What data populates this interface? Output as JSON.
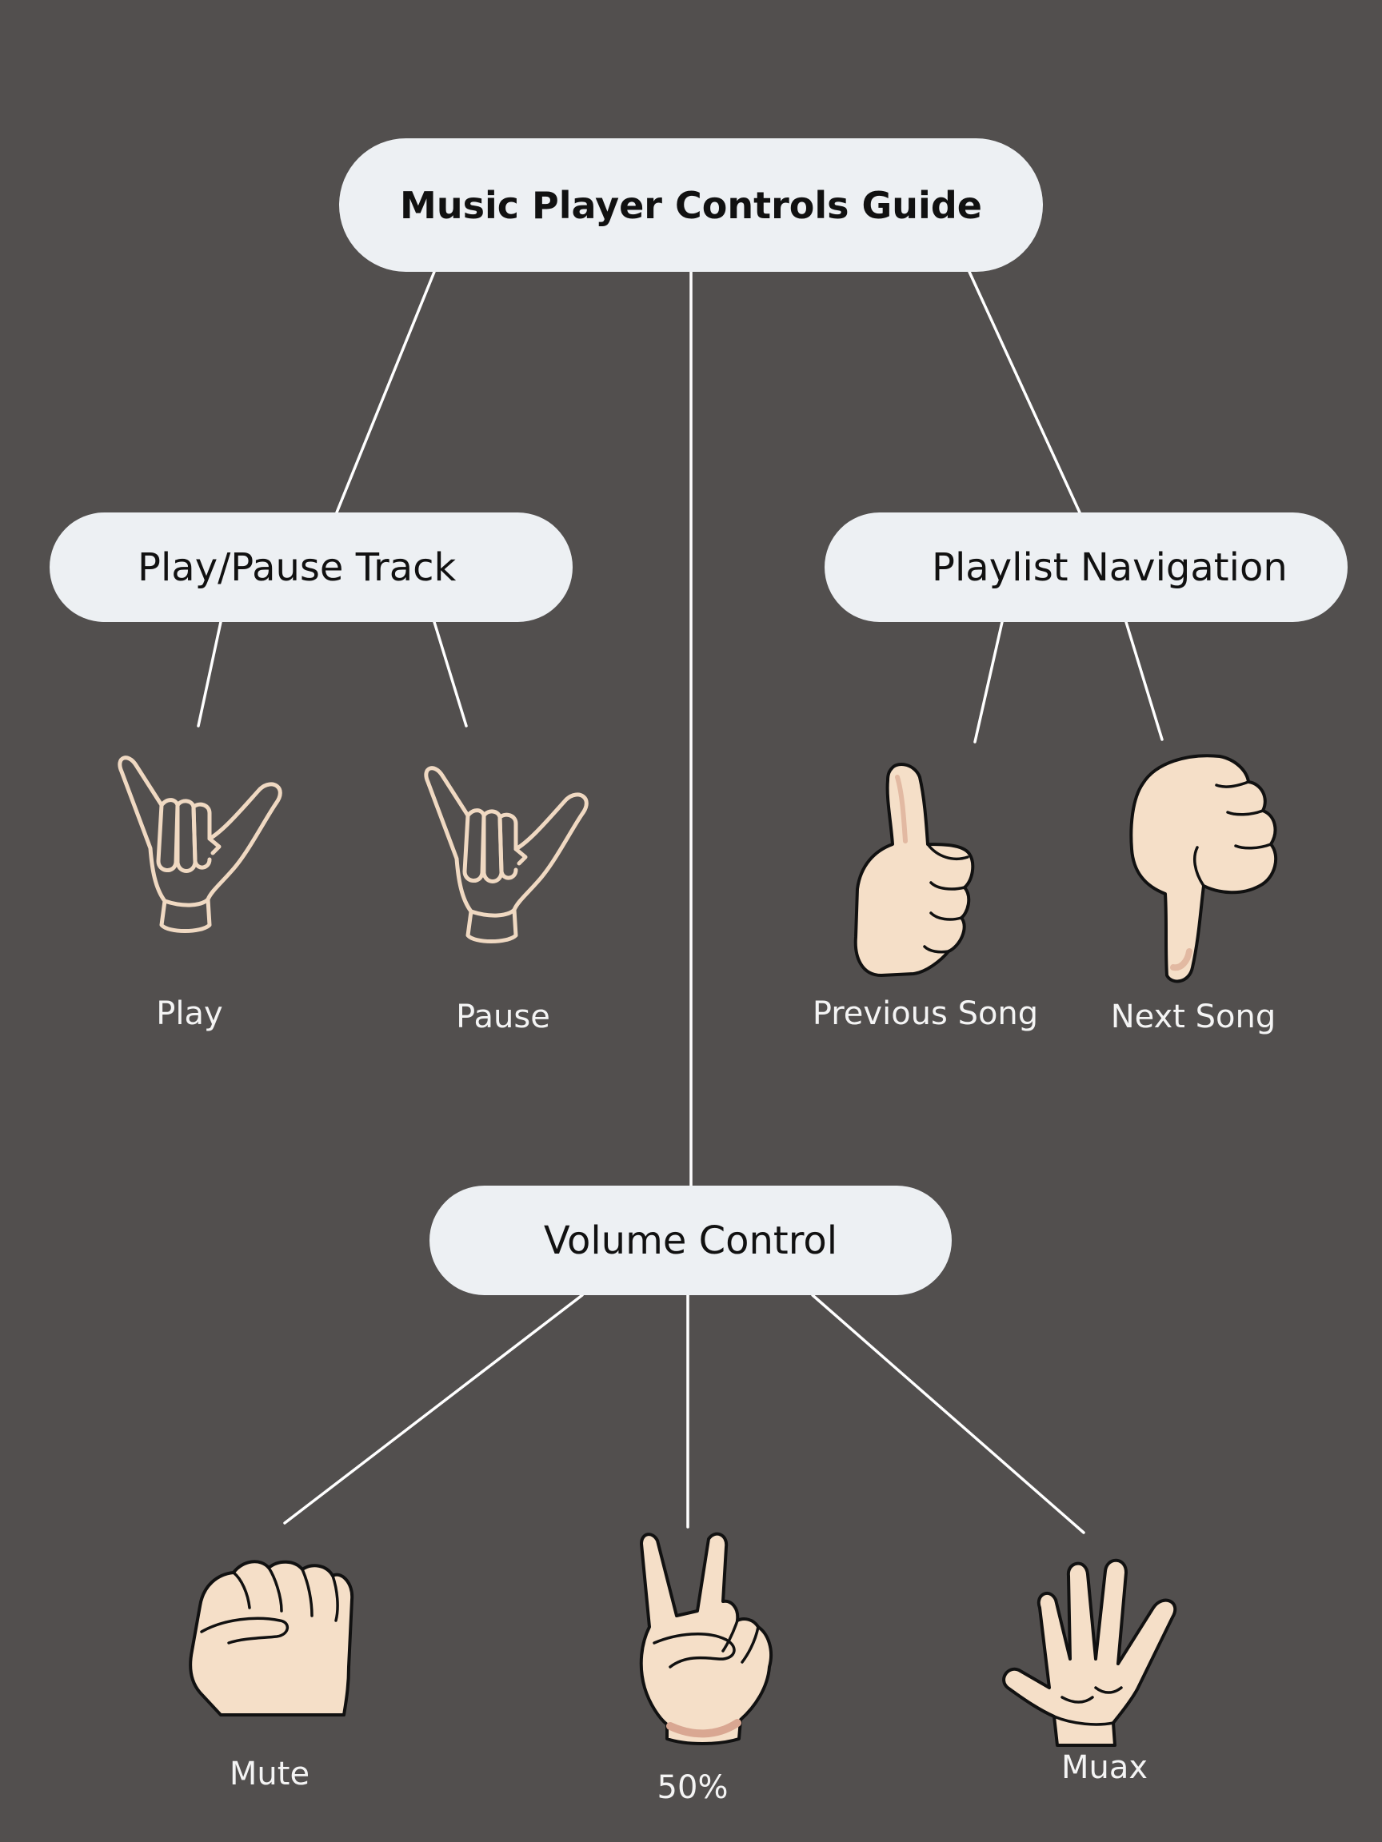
{
  "title": "Music Player Controls Guide",
  "play_pause": {
    "label": "Play/Pause Track",
    "children": [
      {
        "label": "Play",
        "icon": "shaka-hand-icon"
      },
      {
        "label": "Pause",
        "icon": "shaka-hand-icon"
      }
    ]
  },
  "playlist": {
    "label": "Playlist Navigation",
    "children": [
      {
        "label": "Previous Song",
        "icon": "thumbs-up-icon"
      },
      {
        "label": "Next Song",
        "icon": "thumbs-down-icon"
      }
    ]
  },
  "volume": {
    "label": "Volume Control",
    "children": [
      {
        "label": "Mute",
        "icon": "fist-icon"
      },
      {
        "label": "50%",
        "icon": "peace-sign-icon"
      },
      {
        "label": "Muax",
        "icon": "open-palm-icon"
      }
    ]
  },
  "colors": {
    "background": "#524f4e",
    "node_fill": "#edf0f3",
    "connector": "#ffffff",
    "skin": "#f5dfc8",
    "outline_hand": "#f0d9c2"
  }
}
